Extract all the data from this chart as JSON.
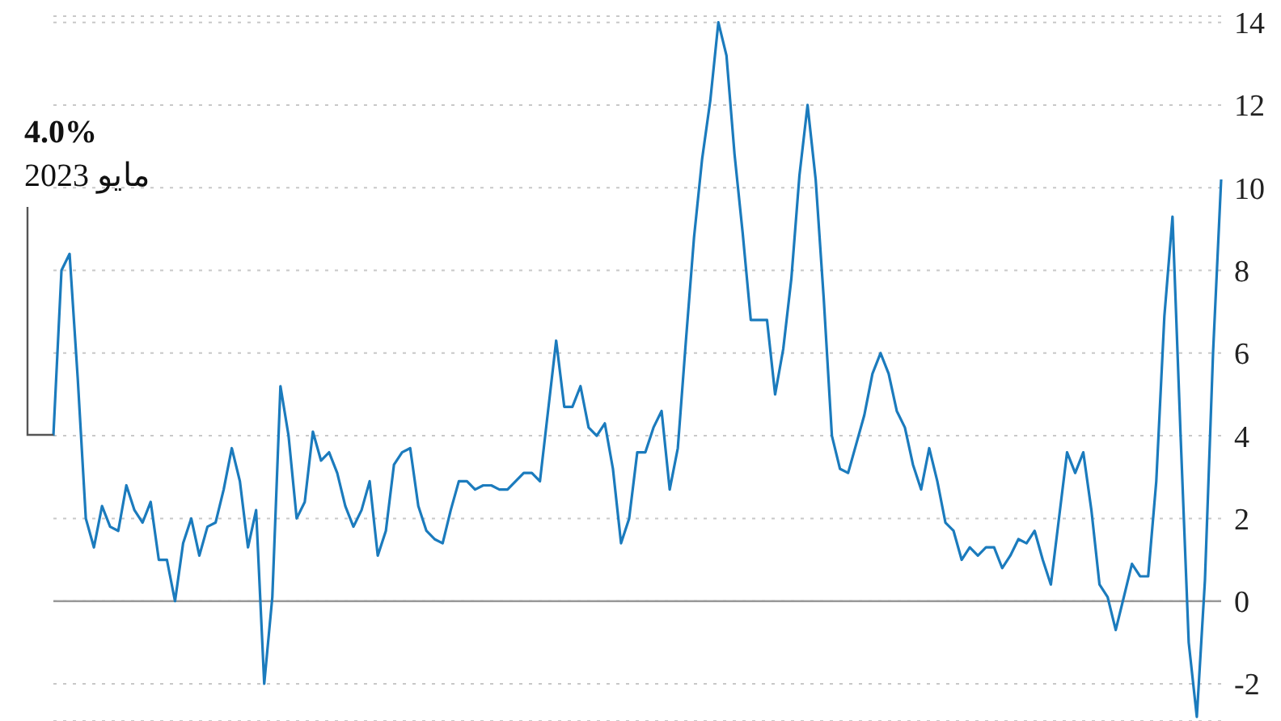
{
  "chart_data": {
    "type": "line",
    "categories": [
      null,
      null,
      null,
      null,
      null,
      null,
      null,
      null,
      null,
      null,
      null,
      null,
      null,
      null,
      null,
      null,
      null,
      null,
      null,
      null,
      null,
      null,
      null,
      null,
      null,
      null,
      null,
      null,
      null,
      null,
      null,
      null,
      null,
      null,
      null,
      null,
      null,
      null,
      null,
      null,
      null,
      null,
      null,
      null,
      null,
      null,
      null,
      null,
      null,
      null,
      null,
      null,
      null,
      null,
      null,
      null,
      null,
      null,
      null,
      null,
      null,
      null,
      null,
      null,
      null,
      null,
      null,
      null,
      null,
      null,
      null,
      null,
      null,
      null,
      null,
      null,
      null,
      null,
      null,
      null,
      null,
      null,
      null,
      null,
      null,
      null,
      null,
      null,
      null,
      null,
      null,
      null,
      null,
      null,
      null,
      null,
      null,
      null,
      null,
      null,
      null,
      null,
      null,
      null,
      null,
      null,
      null,
      null,
      null,
      null,
      null,
      null,
      null,
      null,
      null,
      null,
      null,
      null,
      null,
      null,
      null,
      null,
      null,
      null,
      null,
      null,
      null,
      null,
      null,
      null,
      null,
      null,
      null,
      null,
      null,
      null,
      null,
      null,
      null,
      null,
      null,
      null,
      null,
      null,
      null
    ],
    "series": [
      {
        "color": "#1b7bbd",
        "values": [
          4.0,
          8.0,
          8.4,
          5.4,
          2.0,
          1.3,
          2.3,
          1.8,
          1.7,
          2.8,
          2.2,
          1.9,
          2.4,
          1.0,
          1.0,
          0.0,
          1.4,
          2.0,
          1.1,
          1.8,
          1.9,
          2.7,
          3.7,
          2.9,
          1.3,
          2.2,
          -2.0,
          0.1,
          5.2,
          4.0,
          2.0,
          2.4,
          4.1,
          3.4,
          3.6,
          3.1,
          2.3,
          1.8,
          2.2,
          2.9,
          1.1,
          1.7,
          3.3,
          3.6,
          3.7,
          2.3,
          1.7,
          1.5,
          1.4,
          2.2,
          2.9,
          2.9,
          2.7,
          2.8,
          2.8,
          2.7,
          2.7,
          2.9,
          3.1,
          3.1,
          2.9,
          4.6,
          6.3,
          4.7,
          4.7,
          5.2,
          4.2,
          4.0,
          4.3,
          3.2,
          1.4,
          2.0,
          3.6,
          3.6,
          4.2,
          4.6,
          2.7,
          3.7,
          6.3,
          8.8,
          10.7,
          12.1,
          14.0,
          13.2,
          10.8,
          8.9,
          6.8,
          6.8,
          6.8,
          5.0,
          6.1,
          7.8,
          10.3,
          12.0,
          10.2,
          7.3,
          4.0,
          3.2,
          3.1,
          3.8,
          4.5,
          5.5,
          6.0,
          5.5,
          4.6,
          4.2,
          3.3,
          2.7,
          3.7,
          2.9,
          1.9,
          1.7,
          1.0,
          1.3,
          1.1,
          1.3,
          1.3,
          0.8,
          1.1,
          1.5,
          1.4,
          1.7,
          1.0,
          0.4,
          2.0,
          3.6,
          3.1,
          3.6,
          2.2,
          0.4,
          0.1,
          -0.7,
          0.1,
          0.9,
          0.6,
          0.6,
          2.9,
          6.9,
          9.3,
          4.0,
          -1.0,
          -2.8,
          0.5,
          6.0,
          10.2
        ]
      }
    ],
    "ylim": [
      -2.9,
      14.15
    ],
    "yticks": [
      -2,
      0,
      2,
      4,
      6,
      8,
      10,
      12,
      14
    ],
    "grid": "y",
    "tick_labels": "y",
    "line_style": "solid",
    "marker": "none",
    "ref_lines": [
      {
        "axis": "y",
        "value": 0,
        "color": "#999999"
      }
    ],
    "annotations": [
      "4.0%",
      "مايو 2023"
    ]
  }
}
